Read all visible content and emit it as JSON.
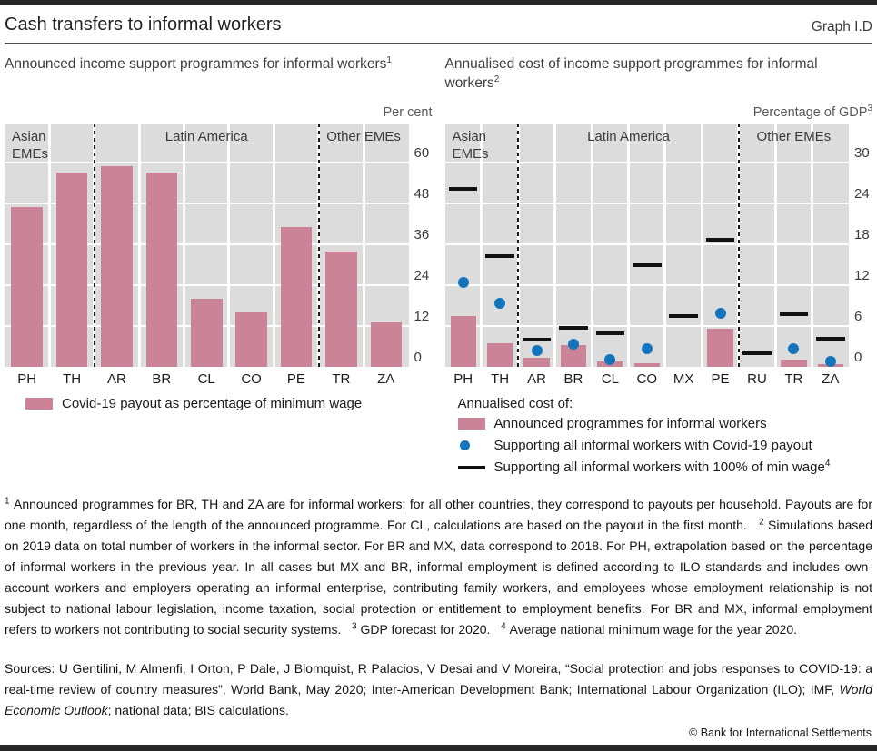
{
  "header": {
    "title": "Cash transfers to informal workers",
    "graph_label": "Graph I.D"
  },
  "panels": [
    {
      "title_rich": [
        {
          "t": "Announced income support programmes for informal workers"
        },
        {
          "sup": "1"
        }
      ],
      "unit_rich": [
        {
          "t": "Per cent"
        }
      ],
      "legend_heading": "",
      "legend": [
        {
          "marker": "bar",
          "label_rich": [
            {
              "t": "Covid-19 payout as percentage of minimum wage"
            }
          ]
        }
      ]
    },
    {
      "title_rich": [
        {
          "t": "Annualised cost of income support programmes for informal workers"
        },
        {
          "sup": "2"
        }
      ],
      "unit_rich": [
        {
          "t": "Percentage of GDP"
        },
        {
          "sup": "3"
        }
      ],
      "legend_heading": "Annualised cost of:",
      "legend": [
        {
          "marker": "bar",
          "label_rich": [
            {
              "t": "Announced programmes for informal workers"
            }
          ]
        },
        {
          "marker": "dot",
          "label_rich": [
            {
              "t": "Supporting all informal workers with Covid-19 payout"
            }
          ]
        },
        {
          "marker": "dash",
          "label_rich": [
            {
              "t": "Supporting all informal workers with 100% of min wage"
            },
            {
              "sup": "4"
            }
          ]
        }
      ]
    }
  ],
  "chart_data": [
    {
      "type": "bar",
      "title": "Announced income support programmes for informal workers",
      "unit": "Per cent",
      "categories": [
        "PH",
        "TH",
        "AR",
        "BR",
        "CL",
        "CO",
        "PE",
        "TR",
        "ZA"
      ],
      "groups": [
        {
          "label": "Asian\nEMEs",
          "from": 0,
          "to": 1,
          "align": "left"
        },
        {
          "label": "Latin America",
          "from": 2,
          "to": 6,
          "align": "center"
        },
        {
          "label": "Other EMEs",
          "from": 7,
          "to": 8,
          "align": "center"
        }
      ],
      "yticks": [
        0,
        12,
        24,
        36,
        48,
        60
      ],
      "ylim": [
        0,
        71
      ],
      "grid": true,
      "legend_position": "below",
      "series": [
        {
          "name": "Covid-19 payout as percentage of minimum wage",
          "marker": "bar",
          "values": [
            47,
            57,
            59,
            57,
            20,
            16,
            41,
            34,
            13
          ]
        }
      ]
    },
    {
      "type": "bar",
      "title": "Annualised cost of income support programmes for informal workers",
      "unit": "Percentage of GDP",
      "categories": [
        "PH",
        "TH",
        "AR",
        "BR",
        "CL",
        "CO",
        "MX",
        "PE",
        "RU",
        "TR",
        "ZA"
      ],
      "groups": [
        {
          "label": "Asian\nEMEs",
          "from": 0,
          "to": 1,
          "align": "left"
        },
        {
          "label": "Latin America",
          "from": 2,
          "to": 7,
          "align": "center"
        },
        {
          "label": "Other EMEs",
          "from": 8,
          "to": 10,
          "align": "center"
        }
      ],
      "yticks": [
        0,
        6,
        12,
        18,
        24,
        30
      ],
      "ylim": [
        0,
        35.5
      ],
      "grid": true,
      "legend_position": "below",
      "series": [
        {
          "name": "Announced programmes for informal workers",
          "marker": "bar",
          "values": [
            7.5,
            3.5,
            1.3,
            3.2,
            0.8,
            0.5,
            0,
            5.6,
            0,
            1.1,
            0.4
          ]
        },
        {
          "name": "Supporting all informal workers with Covid-19 payout",
          "marker": "dot",
          "values": [
            12.4,
            9.3,
            2.4,
            3.3,
            1.1,
            2.7,
            null,
            7.9,
            null,
            2.7,
            0.8
          ]
        },
        {
          "name": "Supporting all informal workers with 100% of min wage",
          "marker": "dash",
          "values": [
            26.1,
            16.3,
            4.0,
            5.7,
            4.9,
            14.9,
            7.5,
            18.7,
            2.0,
            7.7,
            4.1
          ]
        }
      ]
    }
  ],
  "footnotes_rich": [
    {
      "sup": "1"
    },
    {
      "t": " Announced programmes for BR, TH and ZA are for informal workers; for all other countries, they correspond to payouts per household. Payouts are for one month, regardless of the length of the announced programme. For CL, calculations are based on the payout in the first month.   "
    },
    {
      "sup": "2"
    },
    {
      "t": " Simulations based on 2019 data on total number of workers in the informal sector. For BR and MX, data correspond to 2018. For PH, extrapolation based on the percentage of informal workers in the previous year. In all cases but MX and BR, informal employment is defined according to ILO standards and includes own-account workers and employers operating an informal enterprise, contributing family workers, and employees whose employment relationship is not subject to national labour legislation, income taxation, social protection or entitlement to employment benefits. For BR and MX, informal employment refers to workers not contributing to social security systems.   "
    },
    {
      "sup": "3"
    },
    {
      "t": " GDP forecast for 2020.   "
    },
    {
      "sup": "4"
    },
    {
      "t": " Average national minimum wage for the year 2020."
    }
  ],
  "sources_rich": [
    {
      "t": "Sources: U Gentilini, M Almenfi, I Orton, P Dale, J Blomquist, R Palacios, V Desai and V Moreira, “Social protection and jobs responses to COVID-19: a real-time review of country measures”, World Bank, May 2020; Inter-American Development Bank; International Labour Organization (ILO); IMF, "
    },
    {
      "i": "World Economic Outlook"
    },
    {
      "t": "; national data; BIS calculations."
    }
  ],
  "copyright": "© Bank for International Settlements",
  "colors": {
    "bar_pink": "#ca8397",
    "dot_blue": "#1374bc",
    "dash_black": "#111111",
    "plot_background": "#dcdcdc",
    "gridline": "#ffffff",
    "rule_dark": "#262626"
  }
}
